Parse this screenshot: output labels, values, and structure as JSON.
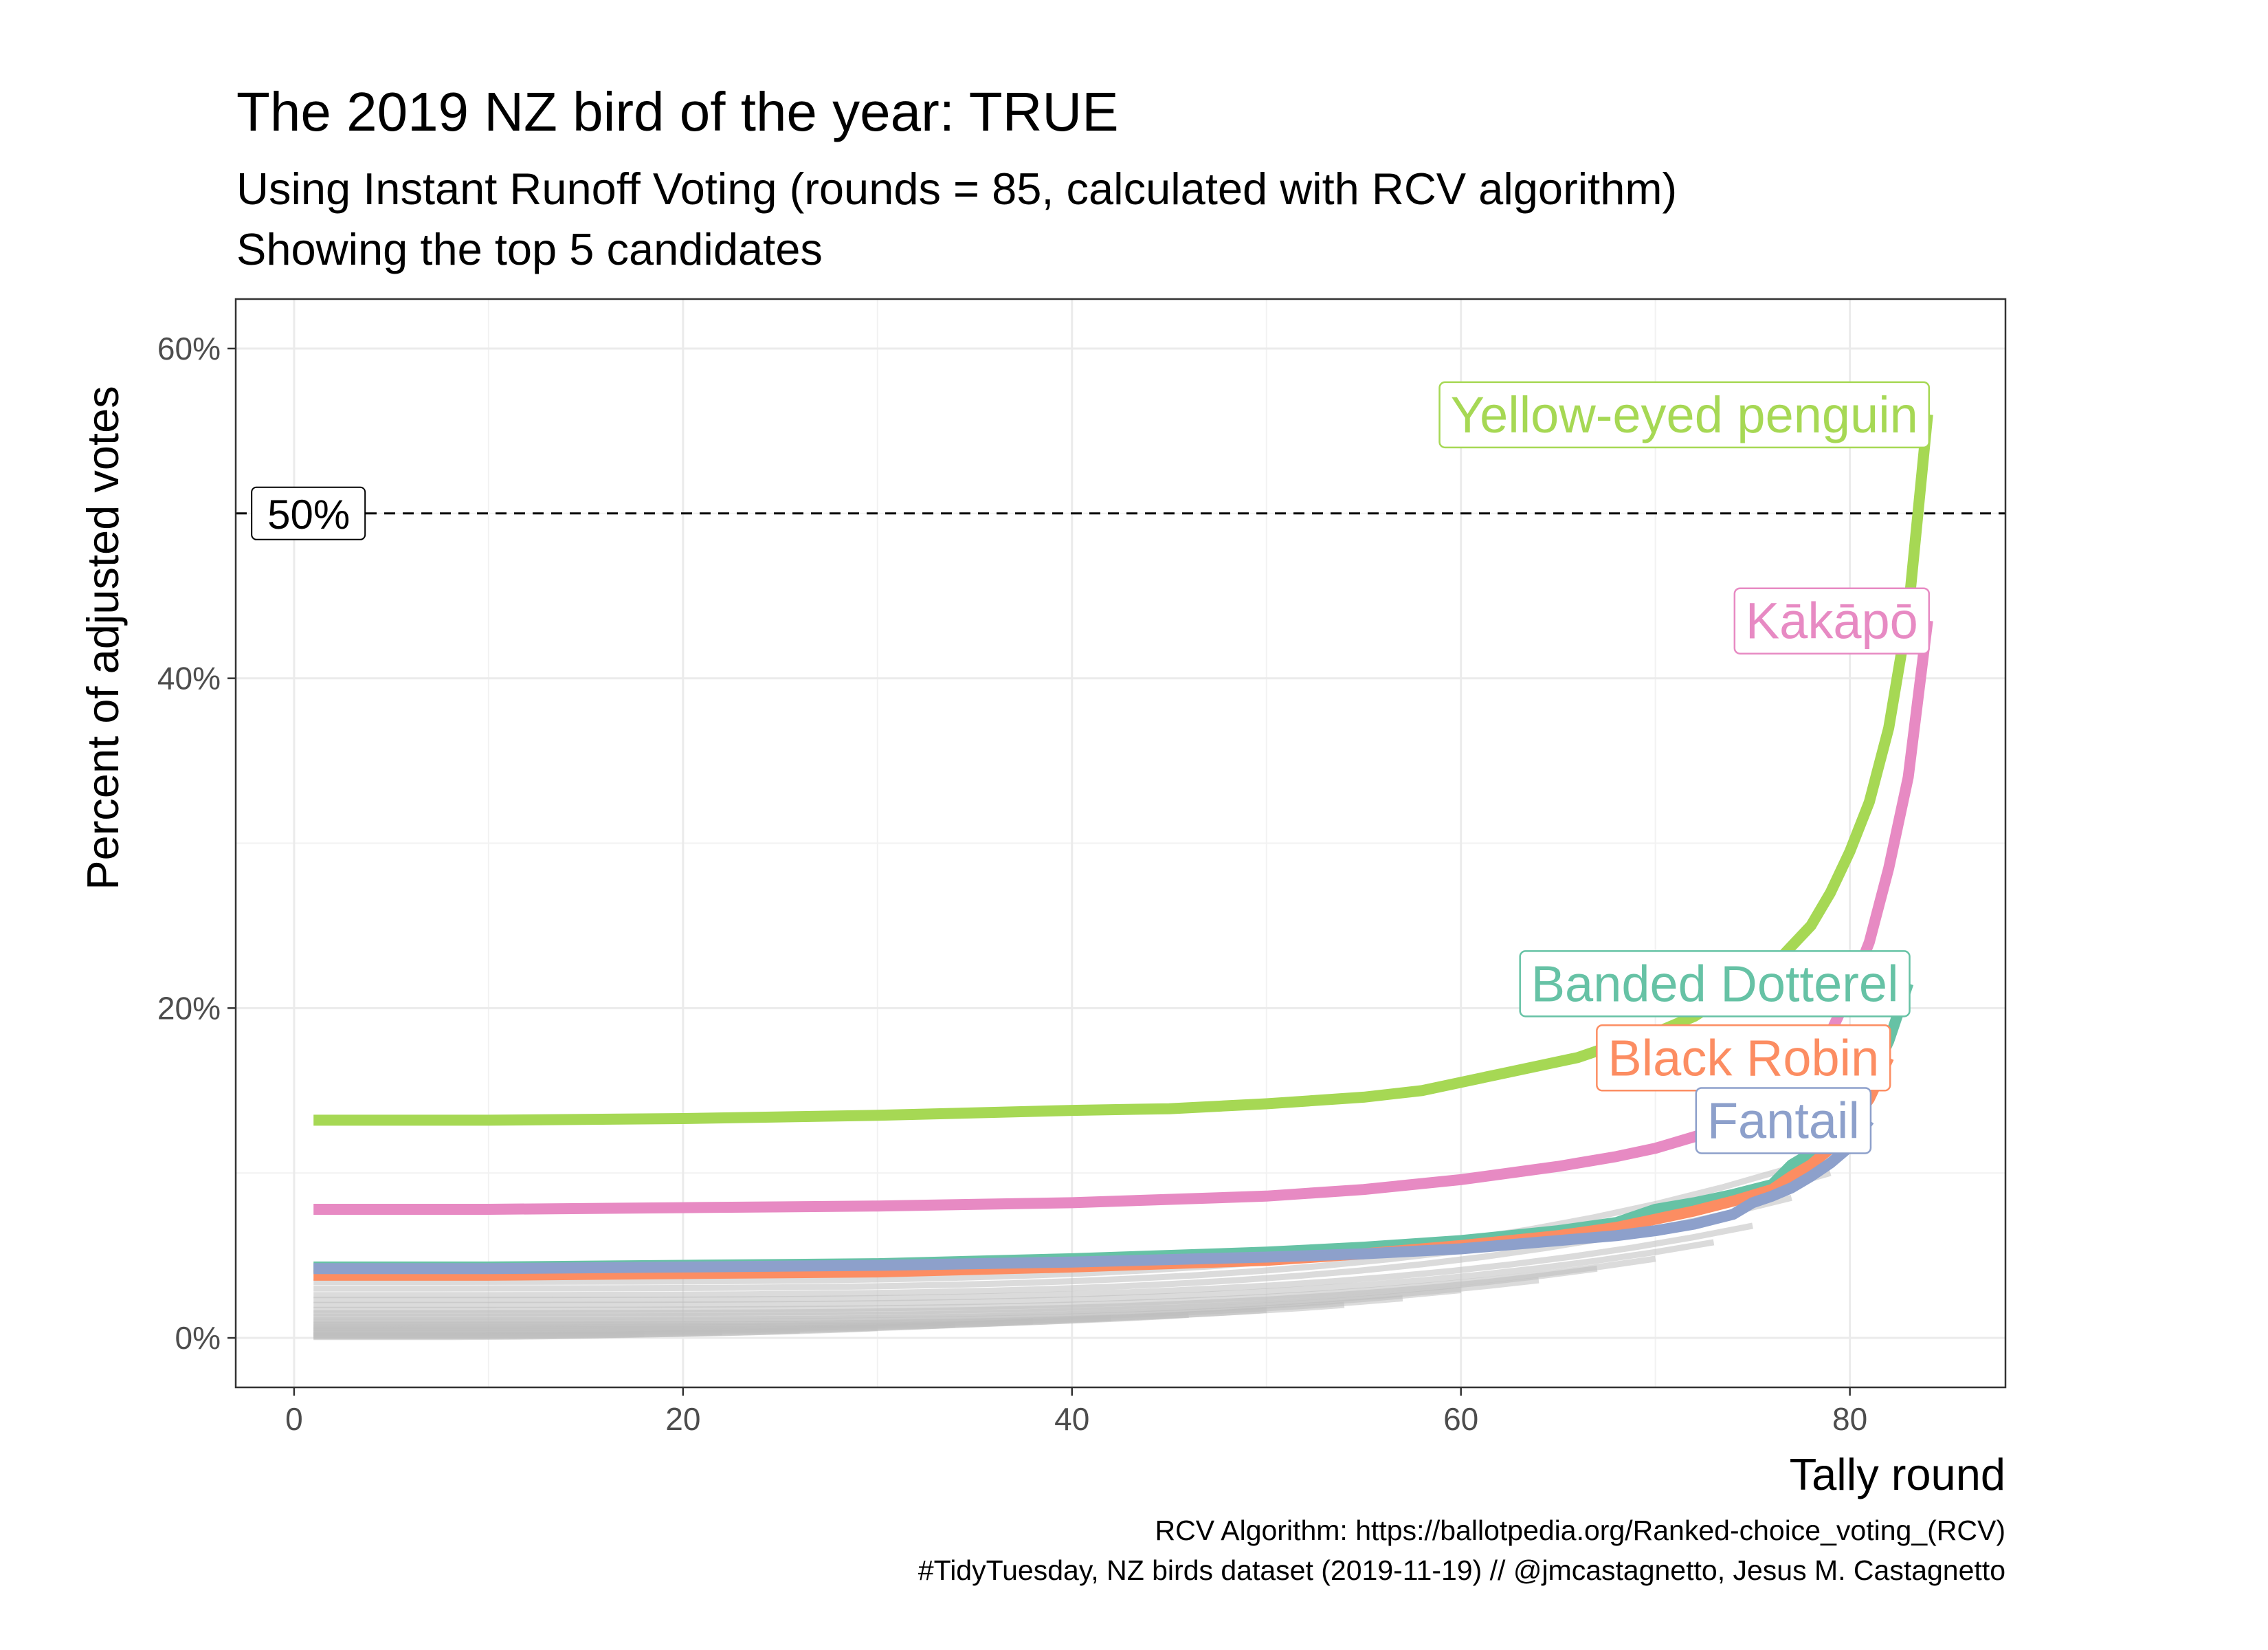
{
  "chart_data": {
    "type": "line",
    "title": "The 2019 NZ bird of the year: TRUE",
    "subtitle_lines": [
      "Using Instant Runoff Voting (rounds = 85, calculated with RCV algorithm)",
      "Showing the top 5 candidates"
    ],
    "xlabel": "Tally round",
    "ylabel": "Percent of adjusted votes",
    "xlim": [
      -3,
      88
    ],
    "ylim": [
      -3,
      63
    ],
    "x_ticks": [
      0,
      20,
      40,
      60,
      80
    ],
    "y_ticks": [
      0,
      20,
      40,
      60
    ],
    "y_tick_labels": [
      "0%",
      "20%",
      "40%",
      "60%"
    ],
    "grid": true,
    "reference_line": {
      "y": 50,
      "label": "50%",
      "style": "dashed"
    },
    "caption_lines": [
      "RCV Algorithm: https://ballotpedia.org/Ranked-choice_voting_(RCV)",
      "#TidyTuesday, NZ birds dataset (2019-11-19) // @jmcastagnetto, Jesus M. Castagnetto"
    ],
    "series": [
      {
        "name": "Yellow-eyed penguin",
        "color": "#a6d854",
        "x": [
          1,
          10,
          20,
          30,
          40,
          45,
          50,
          55,
          58,
          60,
          62,
          64,
          66,
          68,
          70,
          72,
          74,
          76,
          78,
          79,
          80,
          81,
          82,
          83,
          84
        ],
        "y": [
          13.2,
          13.2,
          13.3,
          13.5,
          13.8,
          13.9,
          14.2,
          14.6,
          15.0,
          15.5,
          16.0,
          16.5,
          17.0,
          17.8,
          18.5,
          19.5,
          21.0,
          22.5,
          25.0,
          27.0,
          29.5,
          32.5,
          37.0,
          44.0,
          56.0
        ]
      },
      {
        "name": "Kākāpō",
        "color": "#e78ac3",
        "x": [
          1,
          10,
          20,
          30,
          40,
          50,
          55,
          60,
          65,
          68,
          70,
          72,
          74,
          75,
          76,
          77,
          78,
          79,
          80,
          81,
          82,
          83,
          84
        ],
        "y": [
          7.8,
          7.8,
          7.9,
          8.0,
          8.2,
          8.6,
          9.0,
          9.6,
          10.4,
          11.0,
          11.5,
          12.2,
          13.0,
          13.8,
          14.6,
          15.6,
          16.8,
          18.5,
          21.0,
          24.0,
          28.5,
          34.0,
          43.5
        ]
      },
      {
        "name": "Banded Dotterel",
        "color": "#66c2a5",
        "x": [
          1,
          10,
          20,
          30,
          40,
          50,
          55,
          60,
          65,
          68,
          70,
          72,
          74,
          76,
          77,
          78,
          79,
          80,
          81,
          82,
          83
        ],
        "y": [
          4.3,
          4.3,
          4.4,
          4.5,
          4.8,
          5.2,
          5.5,
          5.9,
          6.5,
          7.0,
          7.8,
          8.2,
          8.7,
          9.3,
          10.5,
          11.2,
          12.0,
          13.5,
          15.5,
          18.0,
          21.5
        ]
      },
      {
        "name": "Black Robin",
        "color": "#fc8d62",
        "x": [
          1,
          10,
          20,
          30,
          40,
          50,
          55,
          60,
          65,
          68,
          70,
          72,
          74,
          76,
          77,
          78,
          79,
          80,
          81,
          82
        ],
        "y": [
          3.8,
          3.8,
          3.9,
          4.0,
          4.3,
          4.7,
          5.1,
          5.6,
          6.2,
          6.7,
          7.2,
          7.7,
          8.3,
          9.0,
          9.8,
          10.5,
          11.5,
          12.8,
          14.5,
          17.0
        ]
      },
      {
        "name": "Fantail",
        "color": "#8da0cb",
        "x": [
          1,
          10,
          20,
          30,
          40,
          50,
          55,
          60,
          65,
          68,
          70,
          72,
          74,
          75,
          76,
          77,
          78,
          79,
          80,
          81
        ],
        "y": [
          4.2,
          4.2,
          4.3,
          4.4,
          4.6,
          4.9,
          5.1,
          5.4,
          5.9,
          6.2,
          6.5,
          6.9,
          7.5,
          8.2,
          8.6,
          9.1,
          9.8,
          10.6,
          11.6,
          13.2
        ]
      }
    ],
    "other_candidates": {
      "color": "#bebebe",
      "lines": [
        {
          "y0": 3.4,
          "end": 80,
          "yend": 11.5
        },
        {
          "y0": 3.0,
          "end": 79,
          "yend": 10.0
        },
        {
          "y0": 2.6,
          "end": 77,
          "yend": 8.5
        },
        {
          "y0": 2.3,
          "end": 75,
          "yend": 6.8
        },
        {
          "y0": 2.0,
          "end": 73,
          "yend": 5.8
        },
        {
          "y0": 1.7,
          "end": 70,
          "yend": 4.8
        },
        {
          "y0": 1.5,
          "end": 67,
          "yend": 4.2
        },
        {
          "y0": 1.3,
          "end": 64,
          "yend": 3.5
        },
        {
          "y0": 1.1,
          "end": 60,
          "yend": 2.9
        },
        {
          "y0": 0.95,
          "end": 57,
          "yend": 2.4
        },
        {
          "y0": 0.8,
          "end": 54,
          "yend": 2.0
        },
        {
          "y0": 0.7,
          "end": 50,
          "yend": 1.7
        },
        {
          "y0": 0.6,
          "end": 46,
          "yend": 1.4
        },
        {
          "y0": 0.5,
          "end": 42,
          "yend": 1.2
        },
        {
          "y0": 0.4,
          "end": 38,
          "yend": 1.0
        },
        {
          "y0": 0.3,
          "end": 34,
          "yend": 0.8
        },
        {
          "y0": 0.2,
          "end": 30,
          "yend": 0.6
        },
        {
          "y0": 0.15,
          "end": 26,
          "yend": 0.45
        },
        {
          "y0": 0.1,
          "end": 22,
          "yend": 0.35
        },
        {
          "y0": 0.05,
          "end": 18,
          "yend": 0.25
        }
      ]
    }
  }
}
